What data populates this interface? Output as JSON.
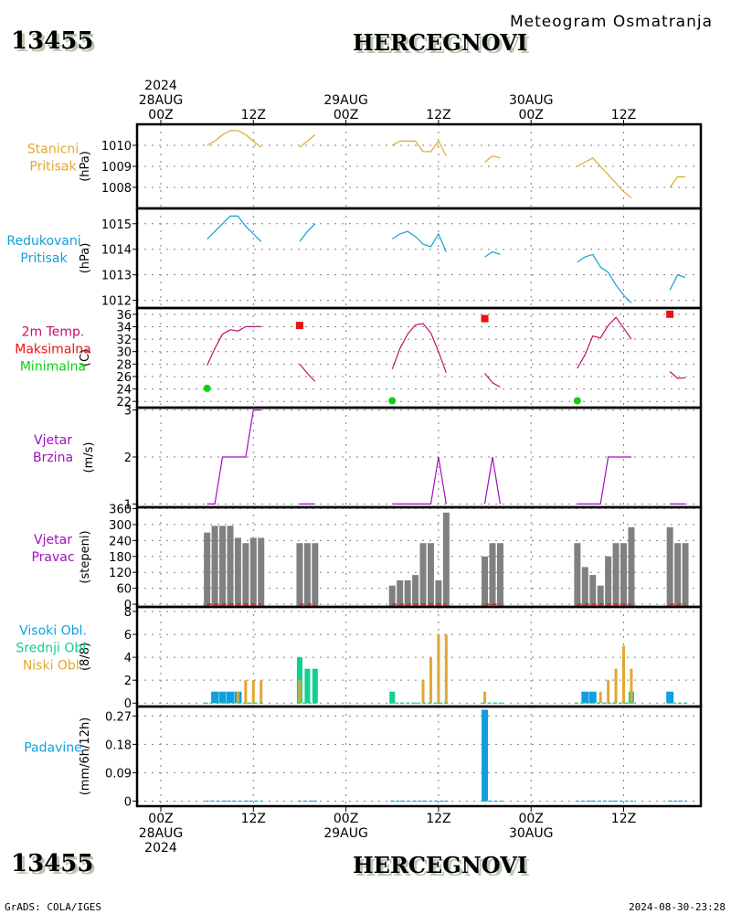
{
  "header": {
    "station_id": "13455",
    "station_name": "HERCEGNOVI",
    "subtitle": "Meteogram Osmatranja"
  },
  "footer": {
    "station_id": "13455",
    "station_name": "HERCEGNOVI",
    "credit": "GrADS: COLA/IGES",
    "timestamp": "2024-08-30-23:28"
  },
  "colors": {
    "station_pressure": "#e0a830",
    "reduced_pressure": "#10a0d8",
    "temperature": "#c0106a",
    "tmax": "#f01010",
    "tmin": "#10d010",
    "wind": "#a010c0",
    "wind_dir_bar": "#808080",
    "high_cloud": "#10a0e0",
    "mid_cloud": "#10d090",
    "low_cloud": "#e0a830",
    "precip": "#10a0e0"
  },
  "chart_data": {
    "type": "line",
    "title": "Meteogram Osmatranja - HERCEGNOVI (13455)",
    "x_unit": "hours since 2024-08-28 00Z",
    "xlim": [
      -3,
      70
    ],
    "top_ticks": [
      {
        "h": 0,
        "lines": [
          "2024",
          "28AUG",
          "00Z"
        ]
      },
      {
        "h": 12,
        "lines": [
          "12Z"
        ]
      },
      {
        "h": 24,
        "lines": [
          "29AUG",
          "00Z"
        ]
      },
      {
        "h": 36,
        "lines": [
          "12Z"
        ]
      },
      {
        "h": 48,
        "lines": [
          "30AUG",
          "00Z"
        ]
      },
      {
        "h": 60,
        "lines": [
          "12Z"
        ]
      }
    ],
    "bottom_ticks": [
      {
        "h": 0,
        "lines": [
          "00Z",
          "28AUG",
          "2024"
        ]
      },
      {
        "h": 12,
        "lines": [
          "12Z"
        ]
      },
      {
        "h": 24,
        "lines": [
          "00Z",
          "29AUG"
        ]
      },
      {
        "h": 36,
        "lines": [
          "12Z"
        ]
      },
      {
        "h": 48,
        "lines": [
          "00Z",
          "30AUG"
        ]
      },
      {
        "h": 60,
        "lines": [
          "12Z"
        ]
      }
    ],
    "hours": [
      6,
      7,
      8,
      9,
      10,
      11,
      12,
      13,
      18,
      19,
      20,
      30,
      31,
      32,
      33,
      34,
      35,
      36,
      37,
      42,
      43,
      44,
      54,
      55,
      56,
      57,
      58,
      59,
      60,
      61,
      66,
      67,
      68
    ],
    "segments": [
      [
        6,
        13
      ],
      [
        18,
        20
      ],
      [
        30,
        37
      ],
      [
        42,
        44
      ],
      [
        54,
        61
      ],
      [
        66,
        68
      ]
    ],
    "panels": [
      {
        "id": "station_pressure",
        "labels": [
          "Stanicni",
          "Pritisak"
        ],
        "label_colors": [
          "station_pressure",
          "station_pressure"
        ],
        "unit": "(hPa)",
        "type": "line",
        "ylim": [
          1007.0,
          1011.0
        ],
        "yticks": [
          1008,
          1009,
          1010
        ],
        "series": [
          {
            "name": "Stanicni Pritisak",
            "color": "station_pressure",
            "values": [
              1010.0,
              1010.2,
              1010.5,
              1010.7,
              1010.7,
              1010.5,
              1010.2,
              1009.9,
              1009.9,
              1010.2,
              1010.5,
              1010.0,
              1010.2,
              1010.2,
              1010.2,
              1009.7,
              1009.7,
              1010.2,
              1009.5,
              1009.2,
              1009.5,
              1009.4,
              1009.0,
              1009.2,
              1009.4,
              1009.0,
              1008.6,
              1008.2,
              1007.8,
              1007.5,
              1008.0,
              1008.5,
              1008.5
            ]
          }
        ]
      },
      {
        "id": "reduced_pressure",
        "labels": [
          "Redukovani",
          "Pritisak"
        ],
        "label_colors": [
          "reduced_pressure",
          "reduced_pressure"
        ],
        "unit": "(hPa)",
        "type": "line",
        "ylim": [
          1011.7,
          1015.6
        ],
        "yticks": [
          1012,
          1013,
          1014,
          1015
        ],
        "series": [
          {
            "name": "Redukovani Pritisak",
            "color": "reduced_pressure",
            "values": [
              1014.4,
              1014.7,
              1015.0,
              1015.3,
              1015.3,
              1014.9,
              1014.6,
              1014.3,
              1014.3,
              1014.7,
              1015.0,
              1014.4,
              1014.6,
              1014.7,
              1014.5,
              1014.2,
              1014.1,
              1014.6,
              1013.9,
              1013.7,
              1013.9,
              1013.8,
              1013.5,
              1013.7,
              1013.8,
              1013.3,
              1013.1,
              1012.6,
              1012.2,
              1011.9,
              1012.4,
              1013.0,
              1012.9
            ]
          }
        ]
      },
      {
        "id": "temperature",
        "labels": [
          "2m Temp.",
          "Maksimalna",
          "Minimalna"
        ],
        "label_colors": [
          "temperature",
          "tmax",
          "tmin"
        ],
        "unit": "(C)",
        "type": "line",
        "ylim": [
          21,
          37
        ],
        "yticks": [
          22,
          24,
          26,
          28,
          30,
          32,
          34,
          36
        ],
        "series": [
          {
            "name": "2m Temp.",
            "color": "temperature",
            "values": [
              27.8,
              30.5,
              32.8,
              33.5,
              33.3,
              34.0,
              34.0,
              34.0,
              28.0,
              26.5,
              25.2,
              27.2,
              30.5,
              32.8,
              34.3,
              34.5,
              33.0,
              30.0,
              26.6,
              26.5,
              25.0,
              24.3,
              27.3,
              29.5,
              32.5,
              32.2,
              34.2,
              35.5,
              33.8,
              32.0,
              26.8,
              25.7,
              25.8
            ]
          },
          {
            "name": "Maksimalna",
            "color": "tmax",
            "marker": "square",
            "points": [
              [
                18,
                34.2
              ],
              [
                42,
                35.3
              ],
              [
                66,
                36.0
              ]
            ]
          },
          {
            "name": "Minimalna",
            "color": "tmin",
            "marker": "circle",
            "points": [
              [
                6,
                24.1
              ],
              [
                30,
                22.1
              ],
              [
                54,
                22.1
              ]
            ]
          }
        ]
      },
      {
        "id": "wind_speed",
        "labels": [
          "Vjetar",
          "Brzina"
        ],
        "label_colors": [
          "wind",
          "wind"
        ],
        "unit": "(m/s)",
        "type": "step-line",
        "ylim": [
          0.93,
          3.05
        ],
        "yticks": [
          1,
          2,
          3
        ],
        "series": [
          {
            "name": "Vjetar Brzina",
            "color": "wind",
            "values": [
              1,
              1,
              2,
              2,
              2,
              2,
              3,
              3,
              1,
              1,
              1,
              1,
              1,
              1,
              1,
              1,
              1,
              2,
              1,
              1,
              2,
              1,
              1,
              1,
              1,
              1,
              2,
              2,
              2,
              2,
              1,
              1,
              1
            ]
          }
        ]
      },
      {
        "id": "wind_dir",
        "labels": [
          "Vjetar",
          "Pravac"
        ],
        "label_colors": [
          "wind",
          "wind"
        ],
        "unit": "(stepeni)",
        "type": "bar",
        "ylim": [
          -10,
          365
        ],
        "yticks": [
          0,
          60,
          120,
          180,
          240,
          300,
          360
        ],
        "series": [
          {
            "name": "Vjetar Pravac",
            "color": "wind_dir_bar",
            "values": [
              270,
              295,
              295,
              295,
              250,
              230,
              250,
              250,
              230,
              230,
              230,
              70,
              90,
              90,
              110,
              230,
              230,
              90,
              345,
              180,
              230,
              230,
              230,
              140,
              110,
              70,
              180,
              230,
              230,
              290,
              290,
              230,
              230
            ]
          }
        ]
      },
      {
        "id": "clouds",
        "labels": [
          "Visoki Obl.",
          "Srednji Obl.",
          "Niski Obl."
        ],
        "label_colors": [
          "high_cloud",
          "mid_cloud",
          "low_cloud"
        ],
        "unit": "(8/8)",
        "type": "bar",
        "ylim": [
          -0.3,
          8.4
        ],
        "yticks": [
          0,
          2,
          4,
          6,
          8
        ],
        "series": [
          {
            "name": "Visoki Obl.",
            "color": "high_cloud",
            "values": [
              0,
              1,
              1,
              1,
              1,
              0,
              0,
              0,
              0,
              0,
              0,
              0,
              0,
              0,
              0,
              0,
              0,
              0,
              0,
              0,
              0,
              0,
              0,
              1,
              1,
              0,
              0,
              0,
              0,
              0,
              1,
              0,
              0
            ]
          },
          {
            "name": "Srednji Obl.",
            "color": "mid_cloud",
            "values": [
              0,
              0,
              0,
              0,
              0,
              0,
              0,
              0,
              4,
              3,
              3,
              1,
              0,
              0,
              0,
              0,
              0,
              0,
              0,
              0,
              0,
              0,
              0,
              0,
              0,
              0,
              0,
              0,
              0,
              1,
              0,
              0,
              0
            ]
          },
          {
            "name": "Niski Obl.",
            "color": "low_cloud",
            "values": [
              0,
              0,
              0,
              0,
              1,
              2,
              2,
              2,
              2,
              0,
              0,
              0,
              0,
              0,
              0,
              2,
              4,
              6,
              6,
              1,
              0,
              0,
              0,
              0,
              0,
              1,
              2,
              3,
              5,
              3,
              0,
              0,
              0
            ]
          }
        ]
      },
      {
        "id": "precip",
        "labels": [
          "Padavine"
        ],
        "label_colors": [
          "precip"
        ],
        "unit": "(mm/6h/12h)",
        "type": "bar",
        "ylim": [
          -0.016,
          0.3
        ],
        "yticks": [
          0,
          0.09,
          0.18,
          0.27
        ],
        "ytick_labels": [
          "0",
          "0.09",
          "0.18",
          "0.27"
        ],
        "series": [
          {
            "name": "Padavine",
            "color": "precip",
            "values": [
              0,
              0,
              0,
              0,
              0,
              0,
              0,
              0,
              0,
              0,
              0,
              0,
              0,
              0,
              0,
              0,
              0,
              0,
              0,
              0.29,
              0,
              0,
              0,
              0,
              0,
              0,
              0,
              0,
              0,
              0,
              0,
              0,
              0
            ]
          }
        ]
      }
    ]
  }
}
